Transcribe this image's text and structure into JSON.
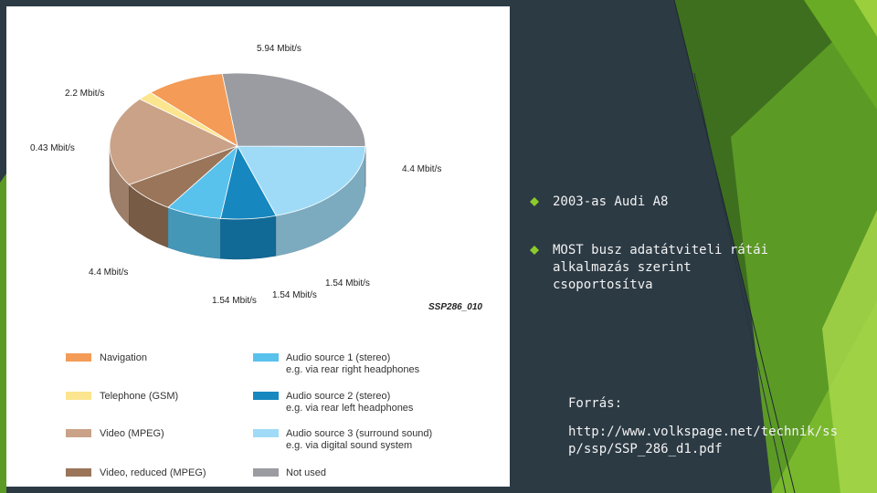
{
  "chart_data": {
    "type": "pie",
    "title": "",
    "unit": "Mbit/s",
    "slices": [
      {
        "category": "Navigation",
        "value": 2.2,
        "label": "2.2 Mbit/s",
        "color": "#f39b57"
      },
      {
        "category": "Telephone (GSM)",
        "value": 0.43,
        "label": "0.43 Mbit/s",
        "color": "#fce58f"
      },
      {
        "category": "Video (MPEG)",
        "value": 4.4,
        "label": "4.4 Mbit/s",
        "color": "#c9a287"
      },
      {
        "category": "Video, reduced (MPEG)",
        "value": 1.54,
        "label": "1.54 Mbit/s",
        "color": "#9a7559"
      },
      {
        "category": "Audio source 1 (stereo)",
        "value": 1.54,
        "label": "1.54 Mbit/s",
        "color": "#58c1ec"
      },
      {
        "category": "Audio source 2 (stereo)",
        "value": 1.54,
        "label": "1.54 Mbit/s",
        "color": "#1687bf"
      },
      {
        "category": "Audio source 3 (surround sound)",
        "value": 4.4,
        "label": "4.4 Mbit/s",
        "color": "#9fdbf6"
      },
      {
        "category": "Not used",
        "value": 5.94,
        "label": "5.94 Mbit/s",
        "color": "#9b9ca1"
      }
    ],
    "image_code": "SSP286_010",
    "legend_position": "bottom"
  },
  "legend": [
    {
      "line1": "Navigation",
      "line2": "",
      "color": "#f39b57"
    },
    {
      "line1": "Telephone (GSM)",
      "line2": "",
      "color": "#fce58f"
    },
    {
      "line1": "Video (MPEG)",
      "line2": "",
      "color": "#c9a287"
    },
    {
      "line1": "Video, reduced (MPEG)",
      "line2": "",
      "color": "#9a7559"
    },
    {
      "line1": "Audio source 1 (stereo)",
      "line2": "e.g. via rear right headphones",
      "color": "#58c1ec"
    },
    {
      "line1": "Audio source 2 (stereo)",
      "line2": "e.g. via rear left headphones",
      "color": "#1687bf"
    },
    {
      "line1": "Audio source 3 (surround sound)",
      "line2": "e.g. via digital sound system",
      "color": "#9fdbf6"
    },
    {
      "line1": "Not used",
      "line2": "",
      "color": "#9b9ca1"
    }
  ],
  "bullets": [
    {
      "text": "2003-as Audi A8"
    },
    {
      "text": "MOST busz adatátviteli rátái alkalmazás szerint csoportosítva"
    }
  ],
  "source": {
    "label": "Forrás:",
    "url": "http://www.volkspage.net/technik/ssp/ssp/SSP_286_d1.pdf"
  },
  "accent_color": "#8ccb2a"
}
